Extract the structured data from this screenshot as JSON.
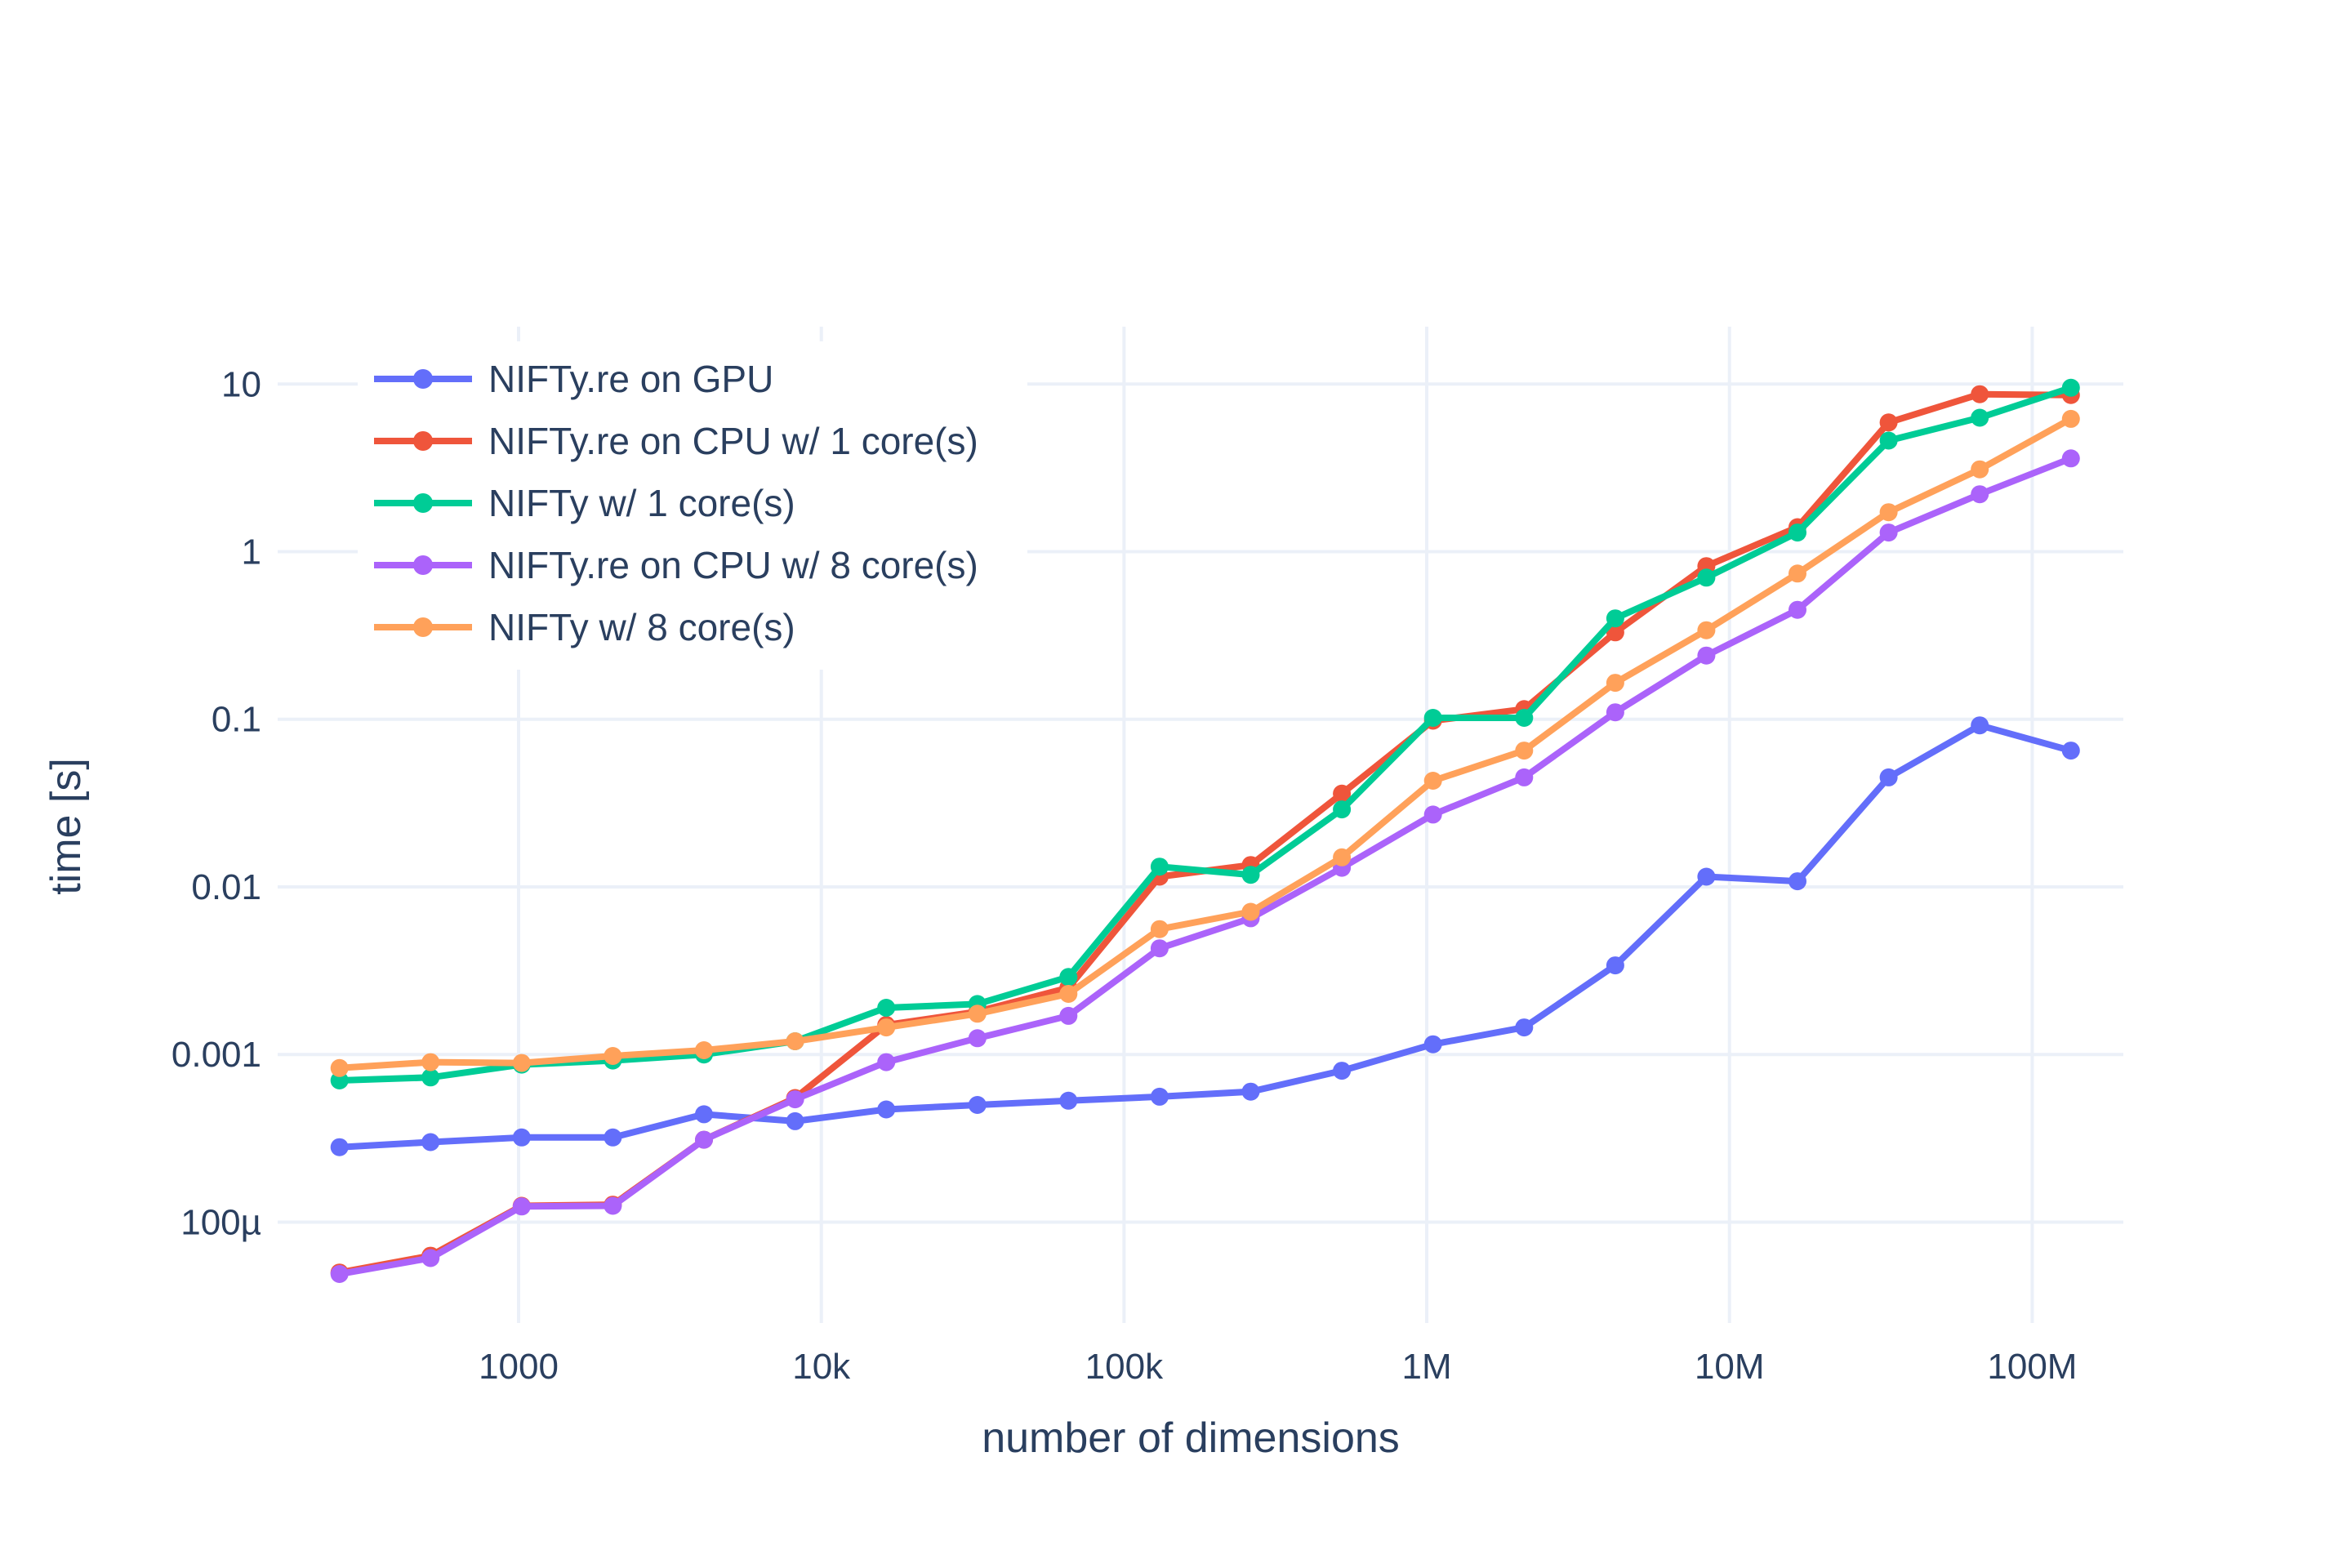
{
  "chart_data": {
    "type": "line",
    "title": "",
    "xlabel": "number of dimensions",
    "ylabel": "time [s]",
    "x_scale": "log",
    "y_scale": "log",
    "xlim": [
      160,
      200000000
    ],
    "ylim": [
      2.5e-05,
      22
    ],
    "grid": true,
    "legend_position": "top-left",
    "x_ticks": [
      {
        "value": 1000,
        "label": "1000"
      },
      {
        "value": 10000,
        "label": "10k"
      },
      {
        "value": 100000,
        "label": "100k"
      },
      {
        "value": 1000000,
        "label": "1M"
      },
      {
        "value": 10000000,
        "label": "10M"
      },
      {
        "value": 100000000,
        "label": "100M"
      }
    ],
    "y_ticks": [
      {
        "value": 0.0001,
        "label": "100µ"
      },
      {
        "value": 0.001,
        "label": "0.001"
      },
      {
        "value": 0.01,
        "label": "0.01"
      },
      {
        "value": 0.1,
        "label": "0.1"
      },
      {
        "value": 1,
        "label": "1"
      },
      {
        "value": 10,
        "label": "10"
      }
    ],
    "x": [
      256,
      512,
      1024,
      2048,
      4096,
      8192,
      16384,
      32768,
      65536,
      131072,
      262144,
      524288,
      1048576,
      2097152,
      4194304,
      8388608,
      16777216,
      33554432,
      67108864,
      134217728
    ],
    "series": [
      {
        "name": "NIFTy.re on GPU",
        "color": "#636efa",
        "values": [
          0.00028,
          0.0003,
          0.00032,
          0.00032,
          0.00044,
          0.0004,
          0.00047,
          0.0005,
          0.00053,
          0.00056,
          0.0006,
          0.0008,
          0.00115,
          0.00145,
          0.0034,
          0.0115,
          0.0108,
          0.045,
          0.092,
          0.065
        ]
      },
      {
        "name": "NIFTy.re on CPU w/ 1 core(s)",
        "color": "#ef553b",
        "values": [
          5e-05,
          6.3e-05,
          0.000125,
          0.000127,
          0.00031,
          0.00055,
          0.0015,
          0.0018,
          0.0025,
          0.0115,
          0.0135,
          0.036,
          0.098,
          0.115,
          0.33,
          0.82,
          1.4,
          5.9,
          8.7,
          8.6
        ]
      },
      {
        "name": "NIFTy w/ 1 core(s)",
        "color": "#00cc96",
        "values": [
          0.0007,
          0.00073,
          0.00087,
          0.00092,
          0.001,
          0.0012,
          0.0019,
          0.002,
          0.0029,
          0.0132,
          0.0118,
          0.029,
          0.102,
          0.102,
          0.4,
          0.7,
          1.3,
          4.6,
          6.3,
          9.5
        ]
      },
      {
        "name": "NIFTy.re on CPU w/ 8 core(s)",
        "color": "#ab63fa",
        "values": [
          4.9e-05,
          6.1e-05,
          0.000124,
          0.000125,
          0.00031,
          0.00054,
          0.0009,
          0.00125,
          0.0017,
          0.0043,
          0.0065,
          0.013,
          0.027,
          0.045,
          0.11,
          0.24,
          0.45,
          1.3,
          2.2,
          3.6
        ]
      },
      {
        "name": "NIFTy w/ 8 core(s)",
        "color": "#ffa15a",
        "values": [
          0.00083,
          0.0009,
          0.00089,
          0.00098,
          0.00106,
          0.0012,
          0.00145,
          0.00175,
          0.0023,
          0.0056,
          0.0071,
          0.015,
          0.043,
          0.065,
          0.165,
          0.34,
          0.74,
          1.72,
          3.1,
          6.2
        ]
      }
    ]
  }
}
